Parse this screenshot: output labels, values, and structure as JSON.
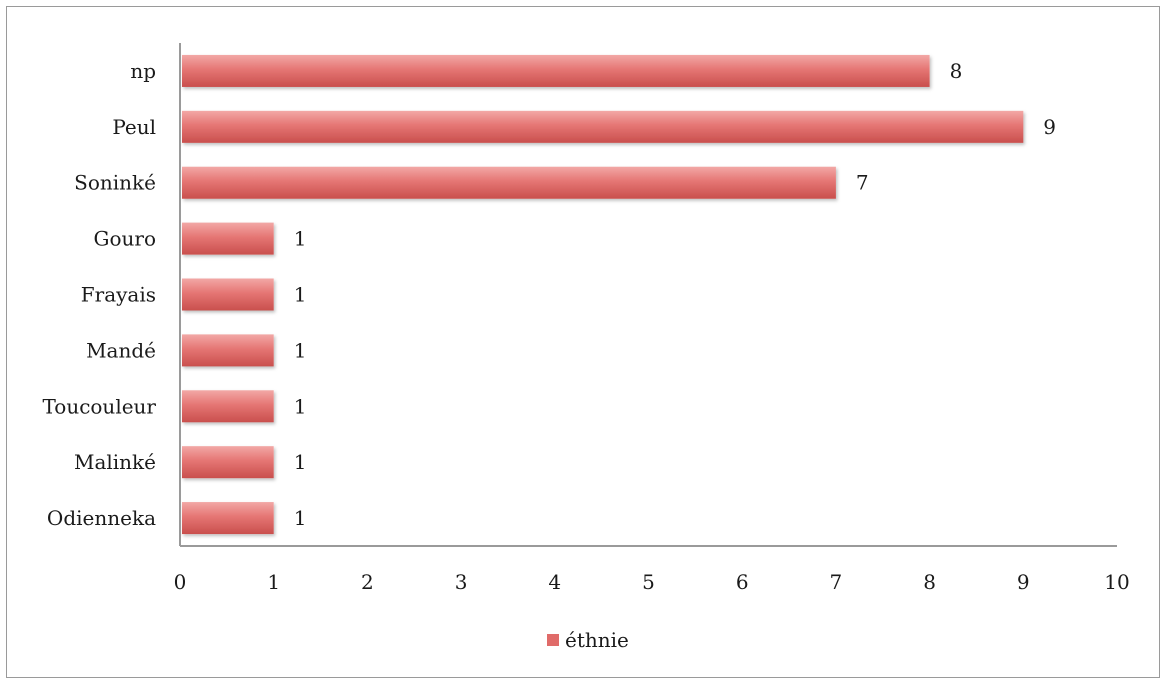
{
  "chart_data": {
    "type": "bar",
    "orientation": "horizontal",
    "categories": [
      "np",
      "Peul",
      "Soninké",
      "Gouro",
      "Frayais",
      "Mandé",
      "Toucouleur",
      "Malinké",
      "Odienneka"
    ],
    "series": [
      {
        "name": "éthnie",
        "values": [
          8,
          9,
          7,
          1,
          1,
          1,
          1,
          1,
          1
        ]
      }
    ],
    "data_labels": [
      "8",
      "9",
      "7",
      "1",
      "1",
      "1",
      "1",
      "1",
      "1"
    ],
    "xlim": [
      0,
      10
    ],
    "xticks": [
      "0",
      "1",
      "2",
      "3",
      "4",
      "5",
      "6",
      "7",
      "8",
      "9",
      "10"
    ],
    "grid": false,
    "legend_position": "bottom",
    "colors": {
      "bar_light": "#f2a8a6",
      "bar_mid": "#e57674",
      "bar_dark": "#c94f4d",
      "axis": "#9a9a9a",
      "legend_swatch": "#e06b69"
    }
  }
}
